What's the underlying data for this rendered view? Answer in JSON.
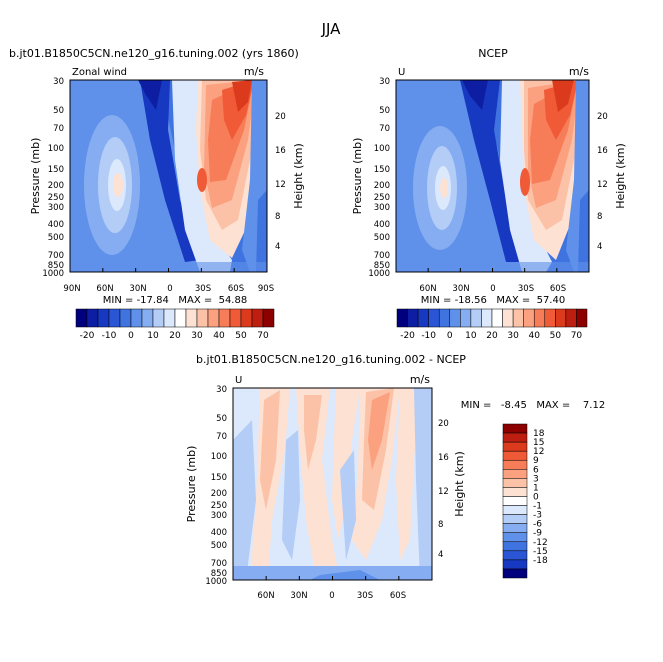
{
  "figure_title": "JJA",
  "chart_data": [
    {
      "type": "heatmap",
      "title": "b.jt01.B1850C5CN.ne120_g16.tuning.002 (yrs 1860)",
      "left_label": "Zonal wind",
      "units": "m/s",
      "ylabel": "Pressure (mb)",
      "y2label": "Height (km)",
      "xticks": [
        "90N",
        "60N",
        "30N",
        "0",
        "30S",
        "60S",
        "90S"
      ],
      "xlim": [
        -90,
        90
      ],
      "yticks": [
        "30",
        "50",
        "70",
        "100",
        "150",
        "200",
        "250",
        "300",
        "400",
        "500",
        "700",
        "850",
        "1000"
      ],
      "ylim_mb": [
        1000,
        30
      ],
      "y2ticks": [
        "20",
        "16",
        "12",
        "8",
        "4"
      ],
      "stats": "MIN = -17.84   MAX =  54.88",
      "min": -17.84,
      "max": 54.88
    },
    {
      "type": "heatmap",
      "title": "NCEP",
      "left_label": "U",
      "units": "m/s",
      "ylabel": "Pressure (mb)",
      "y2label": "Height (km)",
      "xticks": [
        "60N",
        "30N",
        "0",
        "30S",
        "60S"
      ],
      "xlim": [
        -90,
        90
      ],
      "yticks": [
        "30",
        "50",
        "70",
        "100",
        "150",
        "200",
        "250",
        "300",
        "400",
        "500",
        "700",
        "850",
        "1000"
      ],
      "ylim_mb": [
        1000,
        30
      ],
      "y2ticks": [
        "20",
        "16",
        "12",
        "8",
        "4"
      ],
      "stats": "MIN = -18.56   MAX =  57.40",
      "min": -18.56,
      "max": 57.4
    },
    {
      "type": "heatmap",
      "title": "b.jt01.B1850C5CN.ne120_g16.tuning.002 - NCEP",
      "left_label": "U",
      "units": "m/s",
      "ylabel": "Pressure (mb)",
      "y2label": "Height (km)",
      "xticks": [
        "60N",
        "30N",
        "0",
        "30S",
        "60S"
      ],
      "xlim": [
        -90,
        90
      ],
      "yticks": [
        "30",
        "50",
        "70",
        "100",
        "150",
        "200",
        "250",
        "300",
        "400",
        "500",
        "700",
        "850",
        "1000"
      ],
      "ylim_mb": [
        1000,
        30
      ],
      "y2ticks": [
        "20",
        "16",
        "12",
        "8",
        "4"
      ],
      "stats": "MIN =   -8.45   MAX =    7.12",
      "min": -8.45,
      "max": 7.12
    }
  ],
  "colorbars": {
    "wind": {
      "labels": [
        "-20",
        "-10",
        "0",
        "10",
        "20",
        "30",
        "40",
        "50",
        "70"
      ],
      "colors": [
        "#00007f",
        "#0e1ea3",
        "#1738c0",
        "#2a56d6",
        "#3f73e0",
        "#5f91ea",
        "#86adf1",
        "#b3cdf7",
        "#dce8fb",
        "#ffffff",
        "#fde1d2",
        "#fcc2a8",
        "#fba17f",
        "#f77d58",
        "#f05a36",
        "#dc3a1d",
        "#bd1e0f",
        "#8c0000"
      ]
    },
    "diff": {
      "labels": [
        "18",
        "15",
        "12",
        "9",
        "6",
        "3",
        "1",
        "0",
        "-1",
        "-3",
        "-6",
        "-9",
        "-12",
        "-15",
        "-18"
      ],
      "colors": [
        "#8c0000",
        "#bd1e0f",
        "#dc3a1d",
        "#f05a36",
        "#f77d58",
        "#fba17f",
        "#fcc2a8",
        "#fde1d2",
        "#ffffff",
        "#dce8fb",
        "#b3cdf7",
        "#86adf1",
        "#5f91ea",
        "#3f73e0",
        "#2a56d6",
        "#1738c0",
        "#00007f"
      ]
    }
  }
}
